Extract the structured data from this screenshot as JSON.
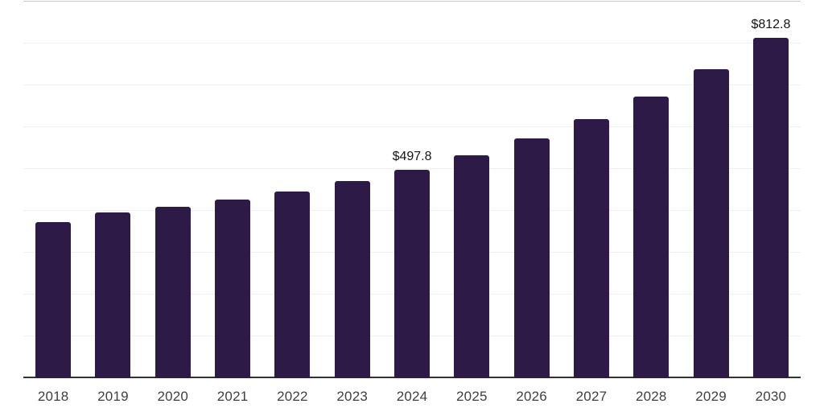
{
  "chart_data": {
    "type": "bar",
    "title": "",
    "xlabel": "",
    "ylabel": "",
    "categories": [
      "2018",
      "2019",
      "2020",
      "2021",
      "2022",
      "2023",
      "2024",
      "2025",
      "2026",
      "2027",
      "2028",
      "2029",
      "2030"
    ],
    "values": [
      374,
      396,
      410,
      427,
      446,
      472,
      497.8,
      532,
      573,
      619,
      674,
      738,
      812.8
    ],
    "data_labels": {
      "2024": "$497.8",
      "2030": "$812.8"
    },
    "ylim": [
      0,
      900
    ],
    "gridline_step": 100,
    "grid": true,
    "legend_visible": false,
    "y_axis_labels_visible": false,
    "colors": {
      "bar": "#2e1a47",
      "axis_line": "#333333",
      "gridline": "#f0f0f0",
      "top_gridline": "#c6c6c6",
      "tick_label": "#3f3f3f",
      "data_label": "#151515",
      "background": "#ffffff"
    }
  }
}
